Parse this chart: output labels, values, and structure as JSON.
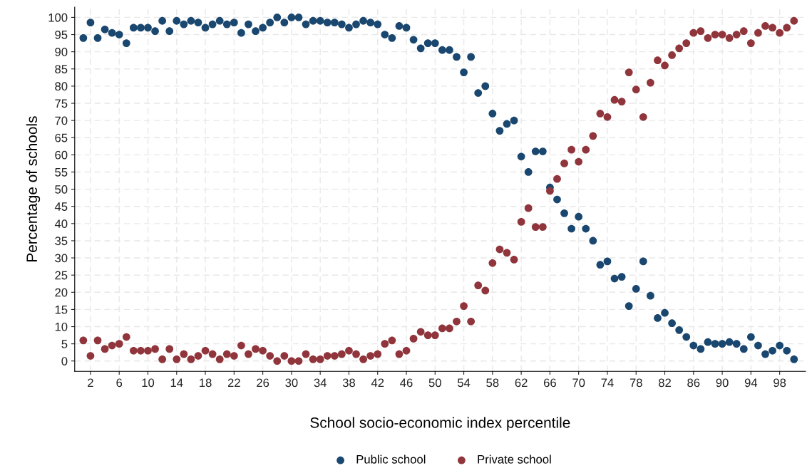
{
  "chart_data": {
    "type": "scatter",
    "xlabel": "School socio-economic index percentile",
    "ylabel": "Percentage of schools",
    "x": [
      1,
      2,
      3,
      4,
      5,
      6,
      7,
      8,
      9,
      10,
      11,
      12,
      13,
      14,
      15,
      16,
      17,
      18,
      19,
      20,
      21,
      22,
      23,
      24,
      25,
      26,
      27,
      28,
      29,
      30,
      31,
      32,
      33,
      34,
      35,
      36,
      37,
      38,
      39,
      40,
      41,
      42,
      43,
      44,
      45,
      46,
      47,
      48,
      49,
      50,
      51,
      52,
      53,
      54,
      55,
      56,
      57,
      58,
      59,
      60,
      61,
      62,
      63,
      64,
      65,
      66,
      67,
      68,
      69,
      70,
      71,
      72,
      73,
      74,
      75,
      76,
      77,
      78,
      79,
      80,
      81,
      82,
      83,
      84,
      85,
      86,
      87,
      88,
      89,
      90,
      91,
      92,
      93,
      94,
      95,
      96,
      97,
      98,
      99,
      100
    ],
    "series": [
      {
        "name": "Public school",
        "color": "#1a476f",
        "values": [
          94,
          98.5,
          94,
          96.5,
          95.5,
          95,
          92.5,
          97,
          97,
          97,
          96,
          99,
          96,
          99,
          98,
          99,
          98.5,
          97,
          98,
          99,
          98,
          98.5,
          95.5,
          98,
          96,
          97,
          98.5,
          100,
          98.5,
          100,
          100,
          98,
          99,
          99,
          98.5,
          98.5,
          98,
          97,
          98,
          99,
          98.5,
          98,
          95,
          94,
          97.5,
          97,
          93.5,
          91,
          92.5,
          92.5,
          90.5,
          90.5,
          88.5,
          84,
          88.5,
          78,
          80,
          72,
          67,
          69,
          70,
          59.5,
          55,
          61,
          61,
          50.5,
          47,
          43,
          38.5,
          42,
          38.5,
          35,
          28,
          29,
          24,
          24.5,
          16,
          21,
          29,
          19,
          12.5,
          14,
          11,
          9,
          7,
          4.5,
          3.5,
          5.5,
          5,
          5,
          5.5,
          5,
          3.5,
          7,
          4.5,
          2,
          3,
          4.5,
          3,
          0.5
        ]
      },
      {
        "name": "Private school",
        "color": "#90353b",
        "values": [
          6,
          1.5,
          6,
          3.5,
          4.5,
          5,
          7,
          3,
          3,
          3,
          3.5,
          0.5,
          3.5,
          0.5,
          2,
          0.5,
          1.5,
          3,
          2,
          0.5,
          2,
          1.5,
          4.5,
          2,
          3.5,
          3,
          1.5,
          0,
          1.5,
          0,
          0,
          2,
          0.5,
          0.5,
          1.5,
          1.5,
          2,
          3,
          2,
          0.5,
          1.5,
          2,
          5,
          6,
          2,
          3,
          6.5,
          8.5,
          7.5,
          7.5,
          9.5,
          9.5,
          11.5,
          16,
          11.5,
          22,
          20.5,
          28.5,
          32.5,
          31.5,
          29.5,
          40.5,
          44.5,
          39,
          39,
          49.5,
          53,
          57.5,
          61.5,
          58,
          61.5,
          65.5,
          72,
          71,
          76,
          75.5,
          84,
          79,
          71,
          81,
          87.5,
          86,
          89,
          91,
          92.5,
          95.5,
          96,
          94,
          95,
          95,
          94,
          95,
          96,
          92.5,
          95.5,
          97.5,
          97,
          95.5,
          97,
          99
        ]
      }
    ],
    "xlim": [
      -0.2,
      101.6
    ],
    "xticks": [
      2,
      6,
      10,
      14,
      18,
      22,
      26,
      30,
      34,
      38,
      42,
      46,
      50,
      54,
      58,
      62,
      66,
      70,
      74,
      78,
      82,
      86,
      90,
      94,
      98
    ],
    "ylim": [
      -3,
      103
    ],
    "yticks": [
      0,
      5,
      10,
      15,
      20,
      25,
      30,
      35,
      40,
      45,
      50,
      55,
      60,
      65,
      70,
      75,
      80,
      85,
      90,
      95,
      100
    ],
    "grid": true,
    "legend": "bottom",
    "marker": "circle"
  }
}
